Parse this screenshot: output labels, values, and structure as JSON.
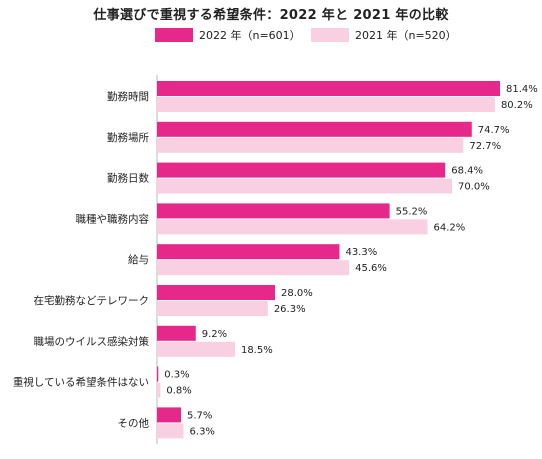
{
  "chart_data": {
    "type": "bar",
    "orientation": "horizontal",
    "title": "仕事選びで重視する希望条件：2022 年と 2021 年の比較",
    "categories": [
      "勤務時間",
      "勤務場所",
      "勤務日数",
      "職種や職務内容",
      "給与",
      "在宅勤務などテレワーク",
      "職場のウイルス感染対策",
      "重視している希望条件はない",
      "その他"
    ],
    "series": [
      {
        "name": "2022 年（n=601）",
        "color": "#e5288a",
        "values": [
          81.4,
          74.7,
          68.4,
          55.2,
          43.3,
          28.0,
          9.2,
          0.3,
          5.7
        ]
      },
      {
        "name": "2021 年（n=520）",
        "color": "#f9cfe2",
        "values": [
          80.2,
          72.7,
          70.0,
          64.2,
          45.6,
          26.3,
          18.5,
          0.8,
          6.3
        ]
      }
    ],
    "xlim": [
      0,
      81.4
    ],
    "value_suffix": "%",
    "grid": false,
    "legend_position": "top"
  }
}
